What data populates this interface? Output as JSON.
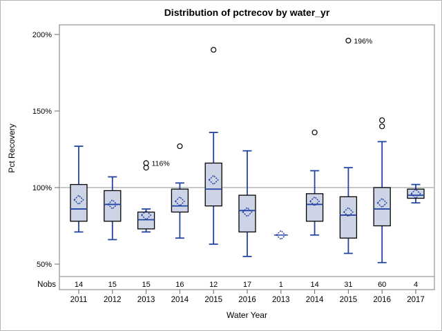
{
  "colors": {
    "box_fill": "#ccd4e6",
    "box_border": "#000000",
    "line_blue": "#2343a2",
    "reference_line": "#a8a8a8",
    "frame": "#999999",
    "tick": "#666666",
    "outlier_stroke": "#000000",
    "text": "#000000"
  },
  "chart_data": {
    "type": "boxplot",
    "title": "Distribution of pctrecov by water_yr",
    "xlabel": "Water Year",
    "ylabel": "Pct Recovery",
    "nobs_label": "Nobs",
    "yticks": [
      50,
      100,
      150,
      200
    ],
    "ytick_suffix": "%",
    "ylim": [
      40,
      206
    ],
    "reference_line": 100,
    "grid": false,
    "legend": "none",
    "categories": [
      "2011",
      "2012",
      "2013",
      "2014",
      "2015",
      "2016",
      "2013",
      "2014",
      "2015",
      "2016",
      "2017"
    ],
    "nobs": [
      14,
      15,
      15,
      16,
      12,
      17,
      1,
      14,
      31,
      60,
      4
    ],
    "boxes": [
      {
        "low": 71,
        "q1": 78,
        "median": 86,
        "q3": 102,
        "high": 127,
        "mean": 92,
        "outliers": []
      },
      {
        "low": 66,
        "q1": 78,
        "median": 89,
        "q3": 98,
        "high": 107,
        "mean": 89,
        "outliers": []
      },
      {
        "low": 71,
        "q1": 73,
        "median": 79,
        "q3": 84,
        "high": 86,
        "mean": 82,
        "outliers": [
          116,
          113
        ]
      },
      {
        "low": 67,
        "q1": 84,
        "median": 88,
        "q3": 99,
        "high": 103,
        "mean": 91,
        "outliers": [
          127
        ]
      },
      {
        "low": 63,
        "q1": 88,
        "median": 99,
        "q3": 116,
        "high": 136,
        "mean": 105,
        "outliers": [
          190
        ]
      },
      {
        "low": 55,
        "q1": 71,
        "median": 85,
        "q3": 95,
        "high": 124,
        "mean": 84,
        "outliers": []
      },
      {
        "low": 69,
        "q1": 69,
        "median": 69,
        "q3": 69,
        "high": 69,
        "mean": 69,
        "outliers": []
      },
      {
        "low": 69,
        "q1": 78,
        "median": 89,
        "q3": 96,
        "high": 111,
        "mean": 91,
        "outliers": [
          136
        ]
      },
      {
        "low": 57,
        "q1": 67,
        "median": 82,
        "q3": 94,
        "high": 113,
        "mean": 84,
        "outliers": [
          196
        ]
      },
      {
        "low": 51,
        "q1": 75,
        "median": 86,
        "q3": 100,
        "high": 130,
        "mean": 90,
        "outliers": [
          144,
          140
        ]
      },
      {
        "low": 90,
        "q1": 93,
        "median": 95,
        "q3": 99,
        "high": 102,
        "mean": 96,
        "outliers": []
      }
    ],
    "annotations": [
      {
        "category_index": 2,
        "value": 116,
        "label": "116%"
      },
      {
        "category_index": 8,
        "value": 196,
        "label": "196%"
      }
    ]
  }
}
